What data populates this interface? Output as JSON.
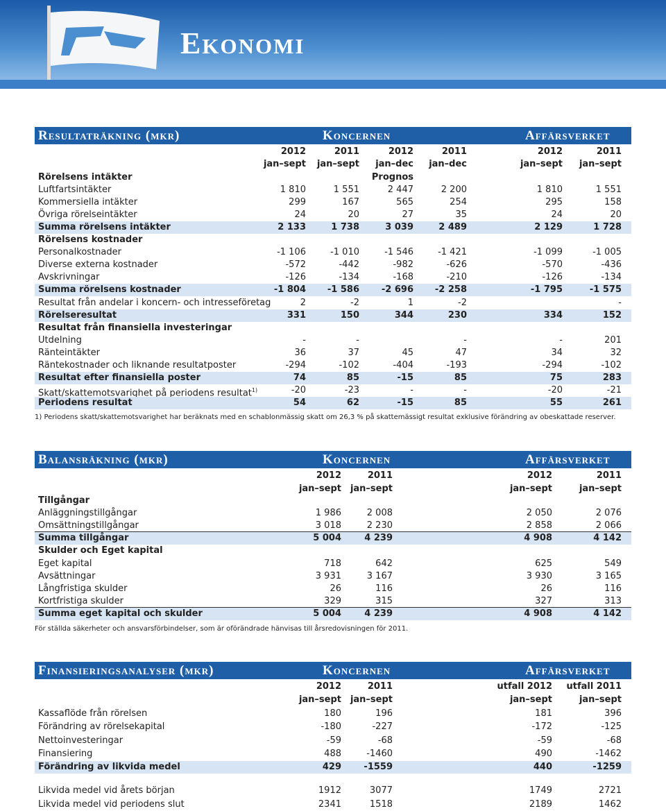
{
  "header": {
    "title": "Ekonomi"
  },
  "resultat": {
    "title": "Resultaträkning (mkr)",
    "group1": "Koncernen",
    "group2": "Affärsverket",
    "years": [
      "2012",
      "2011",
      "2012",
      "2011",
      "2012",
      "2011"
    ],
    "periods": [
      "jan–sept",
      "jan–sept",
      "jan–dec",
      "jan–dec",
      "jan–sept",
      "jan–sept"
    ],
    "rows": [
      {
        "label": "Rörelsens intäkter",
        "values": [
          null,
          null,
          "Prognos",
          null,
          null,
          null
        ]
      },
      {
        "label": "Luftfartsintäkter",
        "values": [
          "1 810",
          "1 551",
          "2 447",
          "2 200",
          "1 810",
          "1 551"
        ]
      },
      {
        "label": "Kommersiella intäkter",
        "values": [
          "299",
          "167",
          "565",
          "254",
          "295",
          "158"
        ]
      },
      {
        "label": "Övriga rörelseintäkter",
        "values": [
          "24",
          "20",
          "27",
          "35",
          "24",
          "20"
        ]
      },
      {
        "label": "Summa rörelsens intäkter",
        "values": [
          "2 133",
          "1 738",
          "3 039",
          "2 489",
          "2 129",
          "1 728"
        ]
      },
      {
        "label": "Rörelsens kostnader",
        "values": [
          null,
          null,
          null,
          null,
          null,
          null
        ]
      },
      {
        "label": "Personalkostnader",
        "values": [
          "-1 106",
          "-1 010",
          "-1 546",
          "-1 421",
          "-1 099",
          "-1 005"
        ]
      },
      {
        "label": "Diverse externa kostnader",
        "values": [
          "-572",
          "-442",
          "-982",
          "-626",
          "-570",
          "-436"
        ]
      },
      {
        "label": "Avskrivningar",
        "values": [
          "-126",
          "-134",
          "-168",
          "-210",
          "-126",
          "-134"
        ]
      },
      {
        "label": "Summa rörelsens kostnader",
        "values": [
          "-1 804",
          "-1 586",
          "-2 696",
          "-2 258",
          "-1 795",
          "-1 575"
        ]
      },
      {
        "label": "Resultat från andelar i koncern- och intresseföretag",
        "values": [
          "2",
          "-2",
          "1",
          "-2",
          null,
          "-"
        ]
      },
      {
        "label": "Rörelseresultat",
        "values": [
          "331",
          "150",
          "344",
          "230",
          "334",
          "152"
        ]
      },
      {
        "label": "Resultat från finansiella investeringar",
        "values": [
          null,
          null,
          null,
          null,
          null,
          null
        ]
      },
      {
        "label": "Utdelning",
        "values": [
          "-",
          "-",
          null,
          "-",
          "-",
          "201"
        ]
      },
      {
        "label": "Ränteintäkter",
        "values": [
          "36",
          "37",
          "45",
          "47",
          "34",
          "32"
        ]
      },
      {
        "label": "Räntekostnader och liknande resultatposter",
        "values": [
          "-294",
          "-102",
          "-404",
          "-193",
          "-294",
          "-102"
        ]
      },
      {
        "label": "Resultat efter finansiella poster",
        "values": [
          "74",
          "85",
          "-15",
          "85",
          "75",
          "283"
        ]
      },
      {
        "label": "Skatt/skattemotsvarighet på periodens resultat",
        "sup": "1)",
        "values": [
          "-20",
          "-23",
          "-",
          "-",
          "-20",
          "-21"
        ]
      },
      {
        "label": "Periodens resultat",
        "values": [
          "54",
          "62",
          "-15",
          "85",
          "55",
          "261"
        ]
      }
    ],
    "footnote": "1) Periodens skatt/skattemotsvarighet har beräknats med en schablonmässig skatt om 26,3 % på skattemässigt resultat exklusive förändring av obeskattade reserver."
  },
  "balans": {
    "title": "Balansräkning (mkr)",
    "group1": "Koncernen",
    "group2": "Affärsverket",
    "years": [
      "2012",
      "2011",
      "2012",
      "2011"
    ],
    "periods": [
      "jan–sept",
      "jan–sept",
      "jan–sept",
      "jan–sept"
    ],
    "rows": [
      {
        "label": "Tillgångar",
        "values": [
          null,
          null,
          null,
          null
        ]
      },
      {
        "label": "Anläggningstillgångar",
        "values": [
          "1 986",
          "2 008",
          "2 050",
          "2 076"
        ]
      },
      {
        "label": "Omsättningstillgångar",
        "values": [
          "3 018",
          "2 230",
          "2 858",
          "2 066"
        ]
      },
      {
        "label": "Summa tillgångar",
        "values": [
          "5 004",
          "4 239",
          "4 908",
          "4 142"
        ]
      },
      {
        "label": "Skulder och Eget kapital",
        "values": [
          null,
          null,
          null,
          null
        ]
      },
      {
        "label": "Eget kapital",
        "values": [
          "718",
          "642",
          "625",
          "549"
        ]
      },
      {
        "label": "Avsättningar",
        "values": [
          "3 931",
          "3 167",
          "3 930",
          "3 165"
        ]
      },
      {
        "label": "Långfristiga skulder",
        "values": [
          "26",
          "116",
          "26",
          "116"
        ]
      },
      {
        "label": "Kortfristiga skulder",
        "values": [
          "329",
          "315",
          "327",
          "313"
        ]
      },
      {
        "label": "Summa eget kapital och skulder",
        "values": [
          "5 004",
          "4 239",
          "4 908",
          "4 142"
        ]
      }
    ],
    "footnote": "För ställda säkerheter och ansvarsförbindelser, som är oförändrade hänvisas till årsredovisningen för 2011."
  },
  "finans": {
    "title": "Finansieringsanalyser (mkr)",
    "group1": "Koncernen",
    "group2": "Affärsverket",
    "years": [
      "2012",
      "2011",
      "utfall 2012",
      "utfall 2011"
    ],
    "periods": [
      "jan–sept",
      "jan–sept",
      "jan–sept",
      "jan–sept"
    ],
    "rows": [
      {
        "label": "Kassaflöde från rörelsen",
        "values": [
          "180",
          "196",
          "181",
          "396"
        ]
      },
      {
        "label": "Förändring av rörelsekapital",
        "values": [
          "-180",
          "-227",
          "-172",
          "-125"
        ]
      },
      {
        "label": "Nettoinvesteringar",
        "values": [
          "-59",
          "-68",
          "-59",
          "-68"
        ]
      },
      {
        "label": "Finansiering",
        "values": [
          "488",
          "-1460",
          "490",
          "-1462"
        ]
      },
      {
        "label": "Förändring av likvida medel",
        "values": [
          "429",
          "-1559",
          "440",
          "-1259"
        ]
      },
      {
        "label": "Likvida medel vid årets början",
        "values": [
          "1912",
          "3077",
          "1749",
          "2721"
        ]
      },
      {
        "label": "Likvida medel vid periodens slut",
        "values": [
          "2341",
          "1518",
          "2189",
          "1462"
        ]
      }
    ]
  }
}
